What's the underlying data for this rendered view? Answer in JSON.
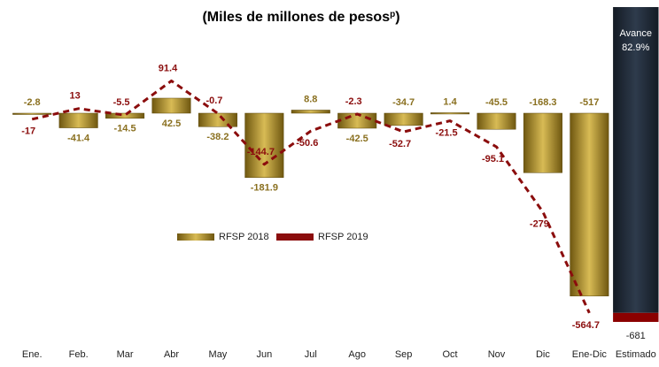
{
  "chart_data": {
    "type": "bar-line",
    "title": "(Miles de millones de pesos",
    "title_note": "p",
    "title_end": ")",
    "categories": [
      "Ene.",
      "Feb.",
      "Mar",
      "Abr",
      "May",
      "Jun",
      "Jul",
      "Ago",
      "Sep",
      "Oct",
      "Nov",
      "Dic",
      "Ene-Dic",
      "Estimado"
    ],
    "series": [
      {
        "name": "RFSP 2018",
        "type": "bar",
        "color": "#a8891f",
        "values": [
          -2.8,
          -41.4,
          -14.5,
          42.5,
          -38.2,
          -181.9,
          8.8,
          -42.5,
          -34.7,
          1.4,
          -45.5,
          -168.3,
          -517.0,
          null
        ]
      },
      {
        "name": "RFSP 2019",
        "type": "line",
        "color": "#8b0d0d",
        "values": [
          -17.0,
          13.0,
          -5.5,
          91.4,
          -0.7,
          -144.7,
          -50.6,
          -2.3,
          -52.7,
          -21.5,
          -95.1,
          -279.0,
          -564.7,
          null
        ]
      }
    ],
    "estimate": {
      "value": -681.0,
      "color": "#8b0000",
      "progress_label": "Avance",
      "progress": 82.9,
      "progress_value_label": "82.9%",
      "progress_color": "#1e2834"
    },
    "ylim": [
      -600,
      300
    ],
    "grid": false
  }
}
